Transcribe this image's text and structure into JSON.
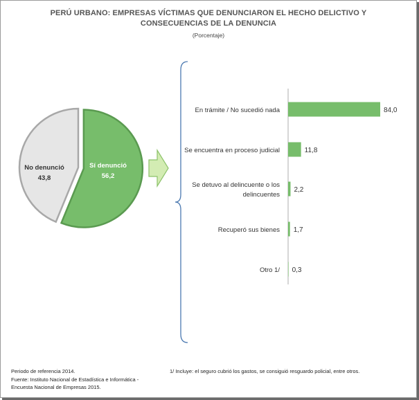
{
  "title_line1": "PERÚ URBANO: EMPRESAS VÍCTIMAS QUE DENUNCIARON EL HECHO DELICTIVO  Y",
  "title_line2": "CONSECUENCIAS  DE LA DENUNCIA",
  "subtitle": "(Porcentaje)",
  "footer": {
    "period": "Periodo de referencia 2014.",
    "source_line1": "Fuente: Instituto Nacional de Estadística e Informática -",
    "source_line2": "Encuesta Nacional de Empresas 2015.",
    "note": "1/ Incluye: el seguro cubrió los gastos, se consiguió resguardo policial, entre otros."
  },
  "colors": {
    "green": "#77bd6b",
    "green_dark": "#5a9a50",
    "grey": "#e6e6e6",
    "grey_edge": "#a8a8a8",
    "bracket": "#4a78b0",
    "arrow_fill": "#d3ecb3",
    "arrow_edge": "#8cc26a",
    "axis": "#999999"
  },
  "chart_data": [
    {
      "type": "pie",
      "slices": [
        {
          "label": "Sí denunció",
          "value": 56.2,
          "value_label": "56,2"
        },
        {
          "label": "No denunció",
          "value": 43.8,
          "value_label": "43,8"
        }
      ]
    },
    {
      "type": "bar",
      "orientation": "horizontal",
      "categories": [
        "En trámite / No sucedió nada",
        "Se encuentra en proceso judicial",
        "Se detuvo al delincuente o los delincuentes",
        "Recuperó sus bienes",
        "Otro 1/"
      ],
      "category_lines": [
        [
          "En trámite / No sucedió nada"
        ],
        [
          "Se encuentra en proceso judicial"
        ],
        [
          "Se detuvo al delincuente o los",
          "delincuentes"
        ],
        [
          "Recuperó sus bienes"
        ],
        [
          "Otro 1/"
        ]
      ],
      "values": [
        84.0,
        11.8,
        2.2,
        1.7,
        0.3
      ],
      "value_labels": [
        "84,0",
        "11,8",
        "2,2",
        "1,7",
        "0,3"
      ],
      "xlim": [
        0,
        84
      ]
    }
  ]
}
